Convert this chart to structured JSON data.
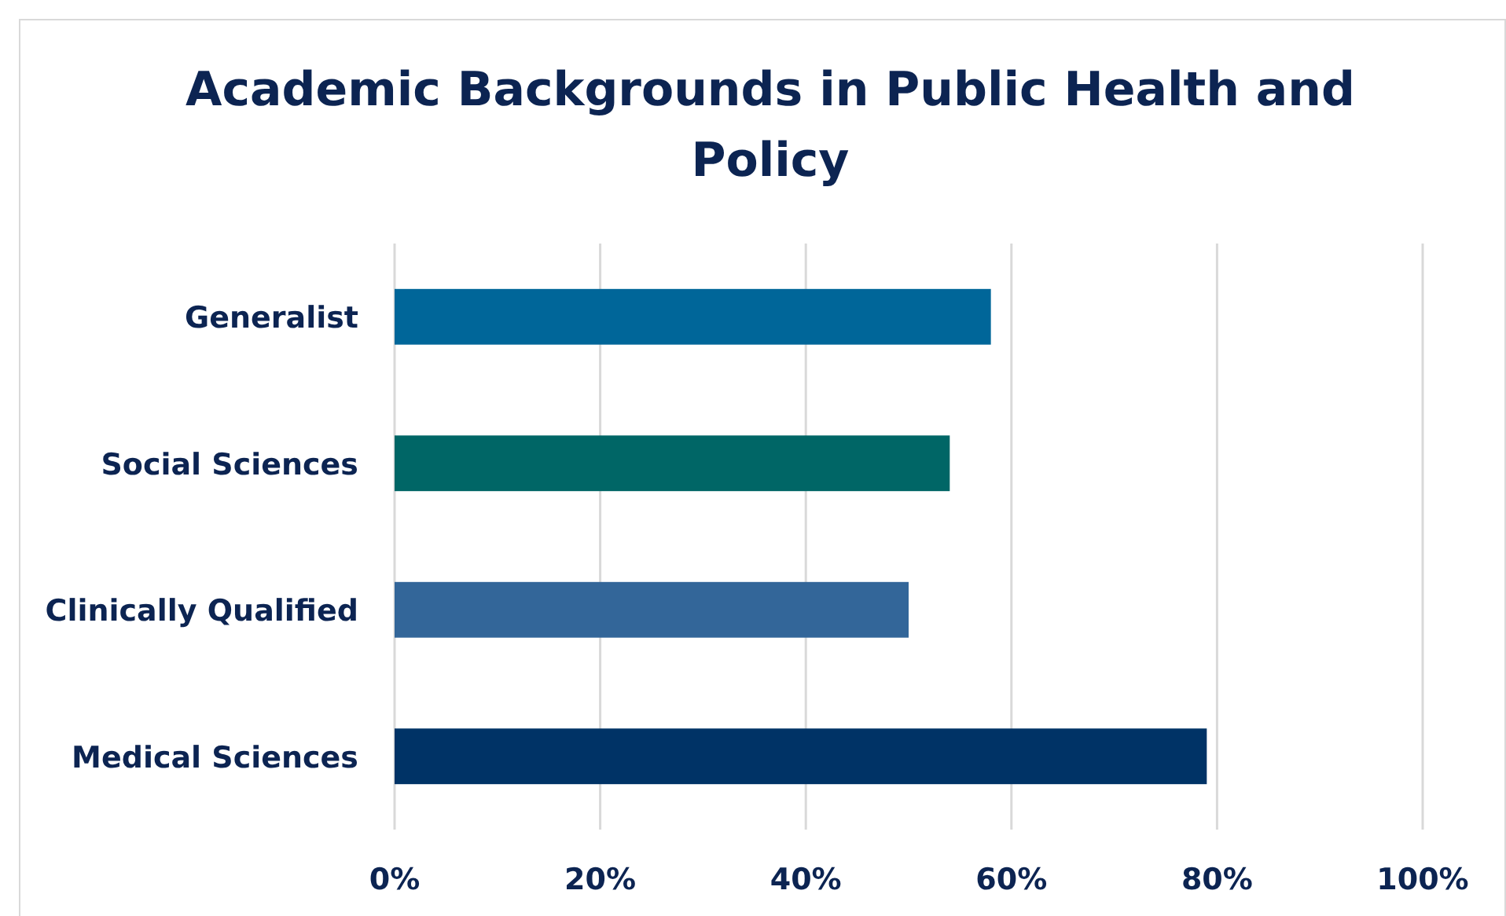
{
  "chart_data": {
    "type": "bar",
    "orientation": "horizontal",
    "title": "Academic Backgrounds in Public Health and Policy",
    "categories": [
      "Generalist",
      "Social Sciences",
      "Clinically Qualified",
      "Medical Sciences"
    ],
    "values": [
      58,
      54,
      50,
      79
    ],
    "colors": [
      "#006699",
      "#006666",
      "#336699",
      "#003366"
    ],
    "xlim": [
      0,
      100
    ],
    "xticks": [
      {
        "value": 0,
        "label": "0%"
      },
      {
        "value": 20,
        "label": "20%"
      },
      {
        "value": 40,
        "label": "40%"
      },
      {
        "value": 60,
        "label": "60%"
      },
      {
        "value": 80,
        "label": "80%"
      },
      {
        "value": 100,
        "label": "100%"
      }
    ],
    "grid": "x"
  }
}
